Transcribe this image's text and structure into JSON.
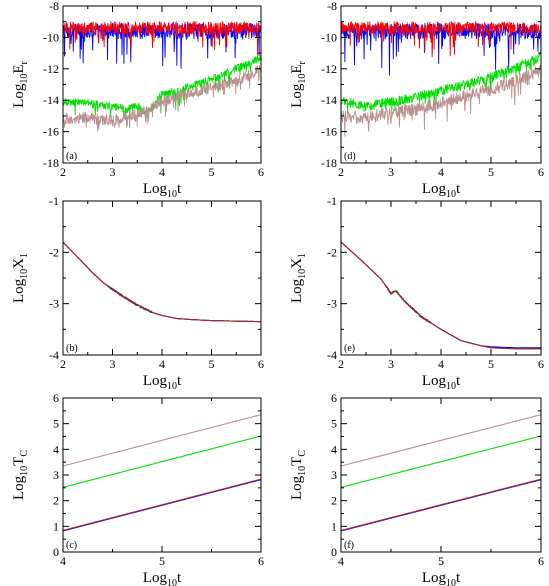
{
  "figure": {
    "panels": [
      {
        "id": "a",
        "label": "(a)",
        "ylabel": "Log",
        "ylabel_sub": "10",
        "ylabel_var": "E",
        "ylabel_var_sub": "r",
        "xlabel": "Log",
        "xlabel_sub": "10",
        "xlabel_var": "t",
        "xticks": [
          "2",
          "3",
          "4",
          "5",
          "6"
        ],
        "yticks": [
          "-8",
          "-10",
          "-12",
          "-14",
          "-16",
          "-18"
        ]
      },
      {
        "id": "b",
        "label": "(b)",
        "ylabel": "Log",
        "ylabel_sub": "10",
        "ylabel_var": "X",
        "ylabel_var_sub": "1",
        "xlabel": "Log",
        "xlabel_sub": "10",
        "xlabel_var": "t",
        "xticks": [
          "2",
          "3",
          "4",
          "5",
          "6"
        ],
        "yticks": [
          "-1",
          "-2",
          "-3",
          "-4"
        ]
      },
      {
        "id": "c",
        "label": "(c)",
        "ylabel": "Log",
        "ylabel_sub": "10",
        "ylabel_var": "T",
        "ylabel_var_sub": "C",
        "xlabel": "Log",
        "xlabel_sub": "10",
        "xlabel_var": "t",
        "xticks": [
          "4",
          "5",
          "6"
        ],
        "yticks": [
          "6",
          "5",
          "4",
          "3",
          "2",
          "1",
          "0"
        ]
      },
      {
        "id": "d",
        "label": "(d)",
        "ylabel": "Log",
        "ylabel_sub": "10",
        "ylabel_var": "E",
        "ylabel_var_sub": "r",
        "xlabel": "Log",
        "xlabel_sub": "10",
        "xlabel_var": "t",
        "xticks": [
          "2",
          "3",
          "4",
          "5",
          "6"
        ],
        "yticks": [
          "-8",
          "-10",
          "-12",
          "-14",
          "-16",
          "-18"
        ]
      },
      {
        "id": "e",
        "label": "(e)",
        "ylabel": "Log",
        "ylabel_sub": "10",
        "ylabel_var": "X",
        "ylabel_var_sub": "1",
        "xlabel": "Log",
        "xlabel_sub": "10",
        "xlabel_var": "t",
        "xticks": [
          "2",
          "3",
          "4",
          "5",
          "6"
        ],
        "yticks": [
          "-1",
          "-2",
          "-3",
          "-4"
        ]
      },
      {
        "id": "f",
        "label": "(f)",
        "ylabel": "Log",
        "ylabel_sub": "10",
        "ylabel_var": "T",
        "ylabel_var_sub": "C",
        "xlabel": "Log",
        "xlabel_sub": "10",
        "xlabel_var": "t",
        "xticks": [
          "4",
          "5",
          "6"
        ],
        "yticks": [
          "6",
          "5",
          "4",
          "3",
          "2",
          "1",
          "0"
        ]
      }
    ]
  },
  "chart_data": [
    {
      "panel": "a",
      "type": "line",
      "xlim": [
        2,
        6
      ],
      "ylim": [
        -18,
        -8
      ],
      "series": [
        {
          "color": "#0000ff",
          "kind": "noisy",
          "x": [
            2,
            6
          ],
          "y": [
            -9.6,
            -9.6
          ],
          "noise_amp": 0.5,
          "spike_depth": 2.5
        },
        {
          "color": "#ff0000",
          "kind": "noisy",
          "x": [
            2,
            6
          ],
          "y": [
            -9.4,
            -9.4
          ],
          "noise_amp": 0.4,
          "spike_depth": 1.5
        },
        {
          "color": "#00e000",
          "kind": "noisy",
          "x": [
            2,
            2.5,
            3,
            3.3,
            3.5,
            3.7,
            4,
            4.3,
            5,
            6
          ],
          "y": [
            -14.1,
            -14.2,
            -14.4,
            -14.6,
            -14.3,
            -14.9,
            -13.6,
            -13.4,
            -12.7,
            -11.3
          ],
          "noise_amp": 0.25,
          "spike_depth": 1.0
        },
        {
          "color": "#bc8f8f",
          "kind": "noisy",
          "x": [
            2,
            2.5,
            3,
            3.5,
            4,
            4.5,
            5,
            5.5,
            6
          ],
          "y": [
            -15.2,
            -15.1,
            -15.3,
            -14.9,
            -14.1,
            -13.6,
            -13.2,
            -12.8,
            -12.0
          ],
          "noise_amp": 0.35,
          "spike_depth": 1.0
        }
      ]
    },
    {
      "panel": "b",
      "type": "line",
      "xlim": [
        2,
        6
      ],
      "ylim": [
        -4,
        -1
      ],
      "series": [
        {
          "color": "#00e000",
          "kind": "smooth",
          "x": [
            2,
            2.3,
            2.6,
            2.8,
            3,
            3.2,
            3.5,
            3.8,
            4,
            4.3,
            4.6,
            5,
            5.5,
            6
          ],
          "y": [
            -1.8,
            -2.1,
            -2.4,
            -2.58,
            -2.72,
            -2.85,
            -3.03,
            -3.17,
            -3.23,
            -3.29,
            -3.31,
            -3.33,
            -3.34,
            -3.35
          ]
        },
        {
          "color": "#0000ff",
          "kind": "smooth",
          "x": [
            2,
            2.3,
            2.6,
            2.8,
            3,
            3.2,
            3.5,
            3.8,
            4,
            4.3,
            4.6,
            5,
            5.5,
            6
          ],
          "y": [
            -1.8,
            -2.1,
            -2.4,
            -2.58,
            -2.72,
            -2.85,
            -3.03,
            -3.17,
            -3.23,
            -3.29,
            -3.31,
            -3.33,
            -3.34,
            -3.35
          ]
        },
        {
          "color": "#b22222",
          "kind": "smooth",
          "x": [
            2,
            2.3,
            2.6,
            2.8,
            3,
            3.2,
            3.5,
            3.8,
            4,
            4.3,
            4.6,
            5,
            5.5,
            6
          ],
          "y": [
            -1.8,
            -2.1,
            -2.4,
            -2.58,
            -2.72,
            -2.85,
            -3.03,
            -3.17,
            -3.23,
            -3.29,
            -3.31,
            -3.33,
            -3.34,
            -3.35
          ]
        }
      ]
    },
    {
      "panel": "c",
      "type": "line",
      "xlim": [
        4,
        6
      ],
      "ylim": [
        0,
        6
      ],
      "series": [
        {
          "color": "#bc8f8f",
          "kind": "straight",
          "x": [
            4,
            6
          ],
          "y": [
            3.35,
            5.35
          ]
        },
        {
          "color": "#00e000",
          "kind": "straight",
          "x": [
            4,
            6
          ],
          "y": [
            2.52,
            4.52
          ]
        },
        {
          "color": "#0000ff",
          "kind": "straight",
          "x": [
            4,
            6
          ],
          "y": [
            0.82,
            2.82
          ]
        },
        {
          "color": "#b22222",
          "kind": "straight",
          "x": [
            4,
            6
          ],
          "y": [
            0.84,
            2.84
          ]
        }
      ]
    },
    {
      "panel": "d",
      "type": "line",
      "xlim": [
        2,
        6
      ],
      "ylim": [
        -18,
        -8
      ],
      "series": [
        {
          "color": "#0000ff",
          "kind": "noisy",
          "x": [
            2,
            6
          ],
          "y": [
            -9.6,
            -9.6
          ],
          "noise_amp": 0.5,
          "spike_depth": 2.5
        },
        {
          "color": "#ff0000",
          "kind": "noisy",
          "x": [
            2,
            6
          ],
          "y": [
            -9.4,
            -9.4
          ],
          "noise_amp": 0.4,
          "spike_depth": 1.5
        },
        {
          "color": "#00e000",
          "kind": "noisy",
          "x": [
            2,
            2.5,
            3,
            3.5,
            4,
            4.5,
            5,
            5.5,
            6
          ],
          "y": [
            -14.0,
            -14.4,
            -14.1,
            -13.8,
            -13.4,
            -13.0,
            -12.5,
            -11.9,
            -11.2
          ],
          "noise_amp": 0.3,
          "spike_depth": 0.8
        },
        {
          "color": "#bc8f8f",
          "kind": "noisy",
          "x": [
            2,
            2.5,
            3,
            3.5,
            4,
            4.5,
            5,
            5.5,
            6
          ],
          "y": [
            -15.0,
            -15.1,
            -14.8,
            -14.6,
            -14.2,
            -13.7,
            -13.3,
            -12.8,
            -12.1
          ],
          "noise_amp": 0.4,
          "spike_depth": 1.2
        }
      ]
    },
    {
      "panel": "e",
      "type": "line",
      "xlim": [
        2,
        6
      ],
      "ylim": [
        -4,
        -1
      ],
      "series": [
        {
          "color": "#00e000",
          "kind": "smooth",
          "x": [
            2,
            2.4,
            2.8,
            3,
            3.1,
            3.3,
            3.6,
            4,
            4.4,
            4.8,
            5,
            5.5,
            6
          ],
          "y": [
            -1.8,
            -2.15,
            -2.52,
            -2.8,
            -2.75,
            -2.98,
            -3.25,
            -3.5,
            -3.72,
            -3.82,
            -3.86,
            -3.88,
            -3.88
          ]
        },
        {
          "color": "#0000ff",
          "kind": "smooth",
          "x": [
            2,
            2.4,
            2.8,
            3,
            3.1,
            3.3,
            3.6,
            4,
            4.4,
            4.8,
            5,
            5.5,
            6
          ],
          "y": [
            -1.8,
            -2.15,
            -2.52,
            -2.8,
            -2.75,
            -2.98,
            -3.25,
            -3.5,
            -3.72,
            -3.82,
            -3.84,
            -3.86,
            -3.86
          ]
        },
        {
          "color": "#b22222",
          "kind": "smooth",
          "x": [
            2,
            2.4,
            2.8,
            3,
            3.1,
            3.3,
            3.6,
            4,
            4.4,
            4.8,
            5,
            5.5,
            6
          ],
          "y": [
            -1.8,
            -2.15,
            -2.52,
            -2.8,
            -2.75,
            -2.98,
            -3.25,
            -3.5,
            -3.72,
            -3.82,
            -3.86,
            -3.88,
            -3.88
          ]
        }
      ]
    },
    {
      "panel": "f",
      "type": "line",
      "xlim": [
        4,
        6
      ],
      "ylim": [
        0,
        6
      ],
      "series": [
        {
          "color": "#bc8f8f",
          "kind": "straight",
          "x": [
            4,
            6
          ],
          "y": [
            3.35,
            5.35
          ]
        },
        {
          "color": "#00e000",
          "kind": "straight",
          "x": [
            4,
            6
          ],
          "y": [
            2.52,
            4.52
          ]
        },
        {
          "color": "#0000ff",
          "kind": "straight",
          "x": [
            4,
            6
          ],
          "y": [
            0.82,
            2.82
          ]
        },
        {
          "color": "#b22222",
          "kind": "straight",
          "x": [
            4,
            6
          ],
          "y": [
            0.84,
            2.84
          ]
        }
      ]
    }
  ]
}
